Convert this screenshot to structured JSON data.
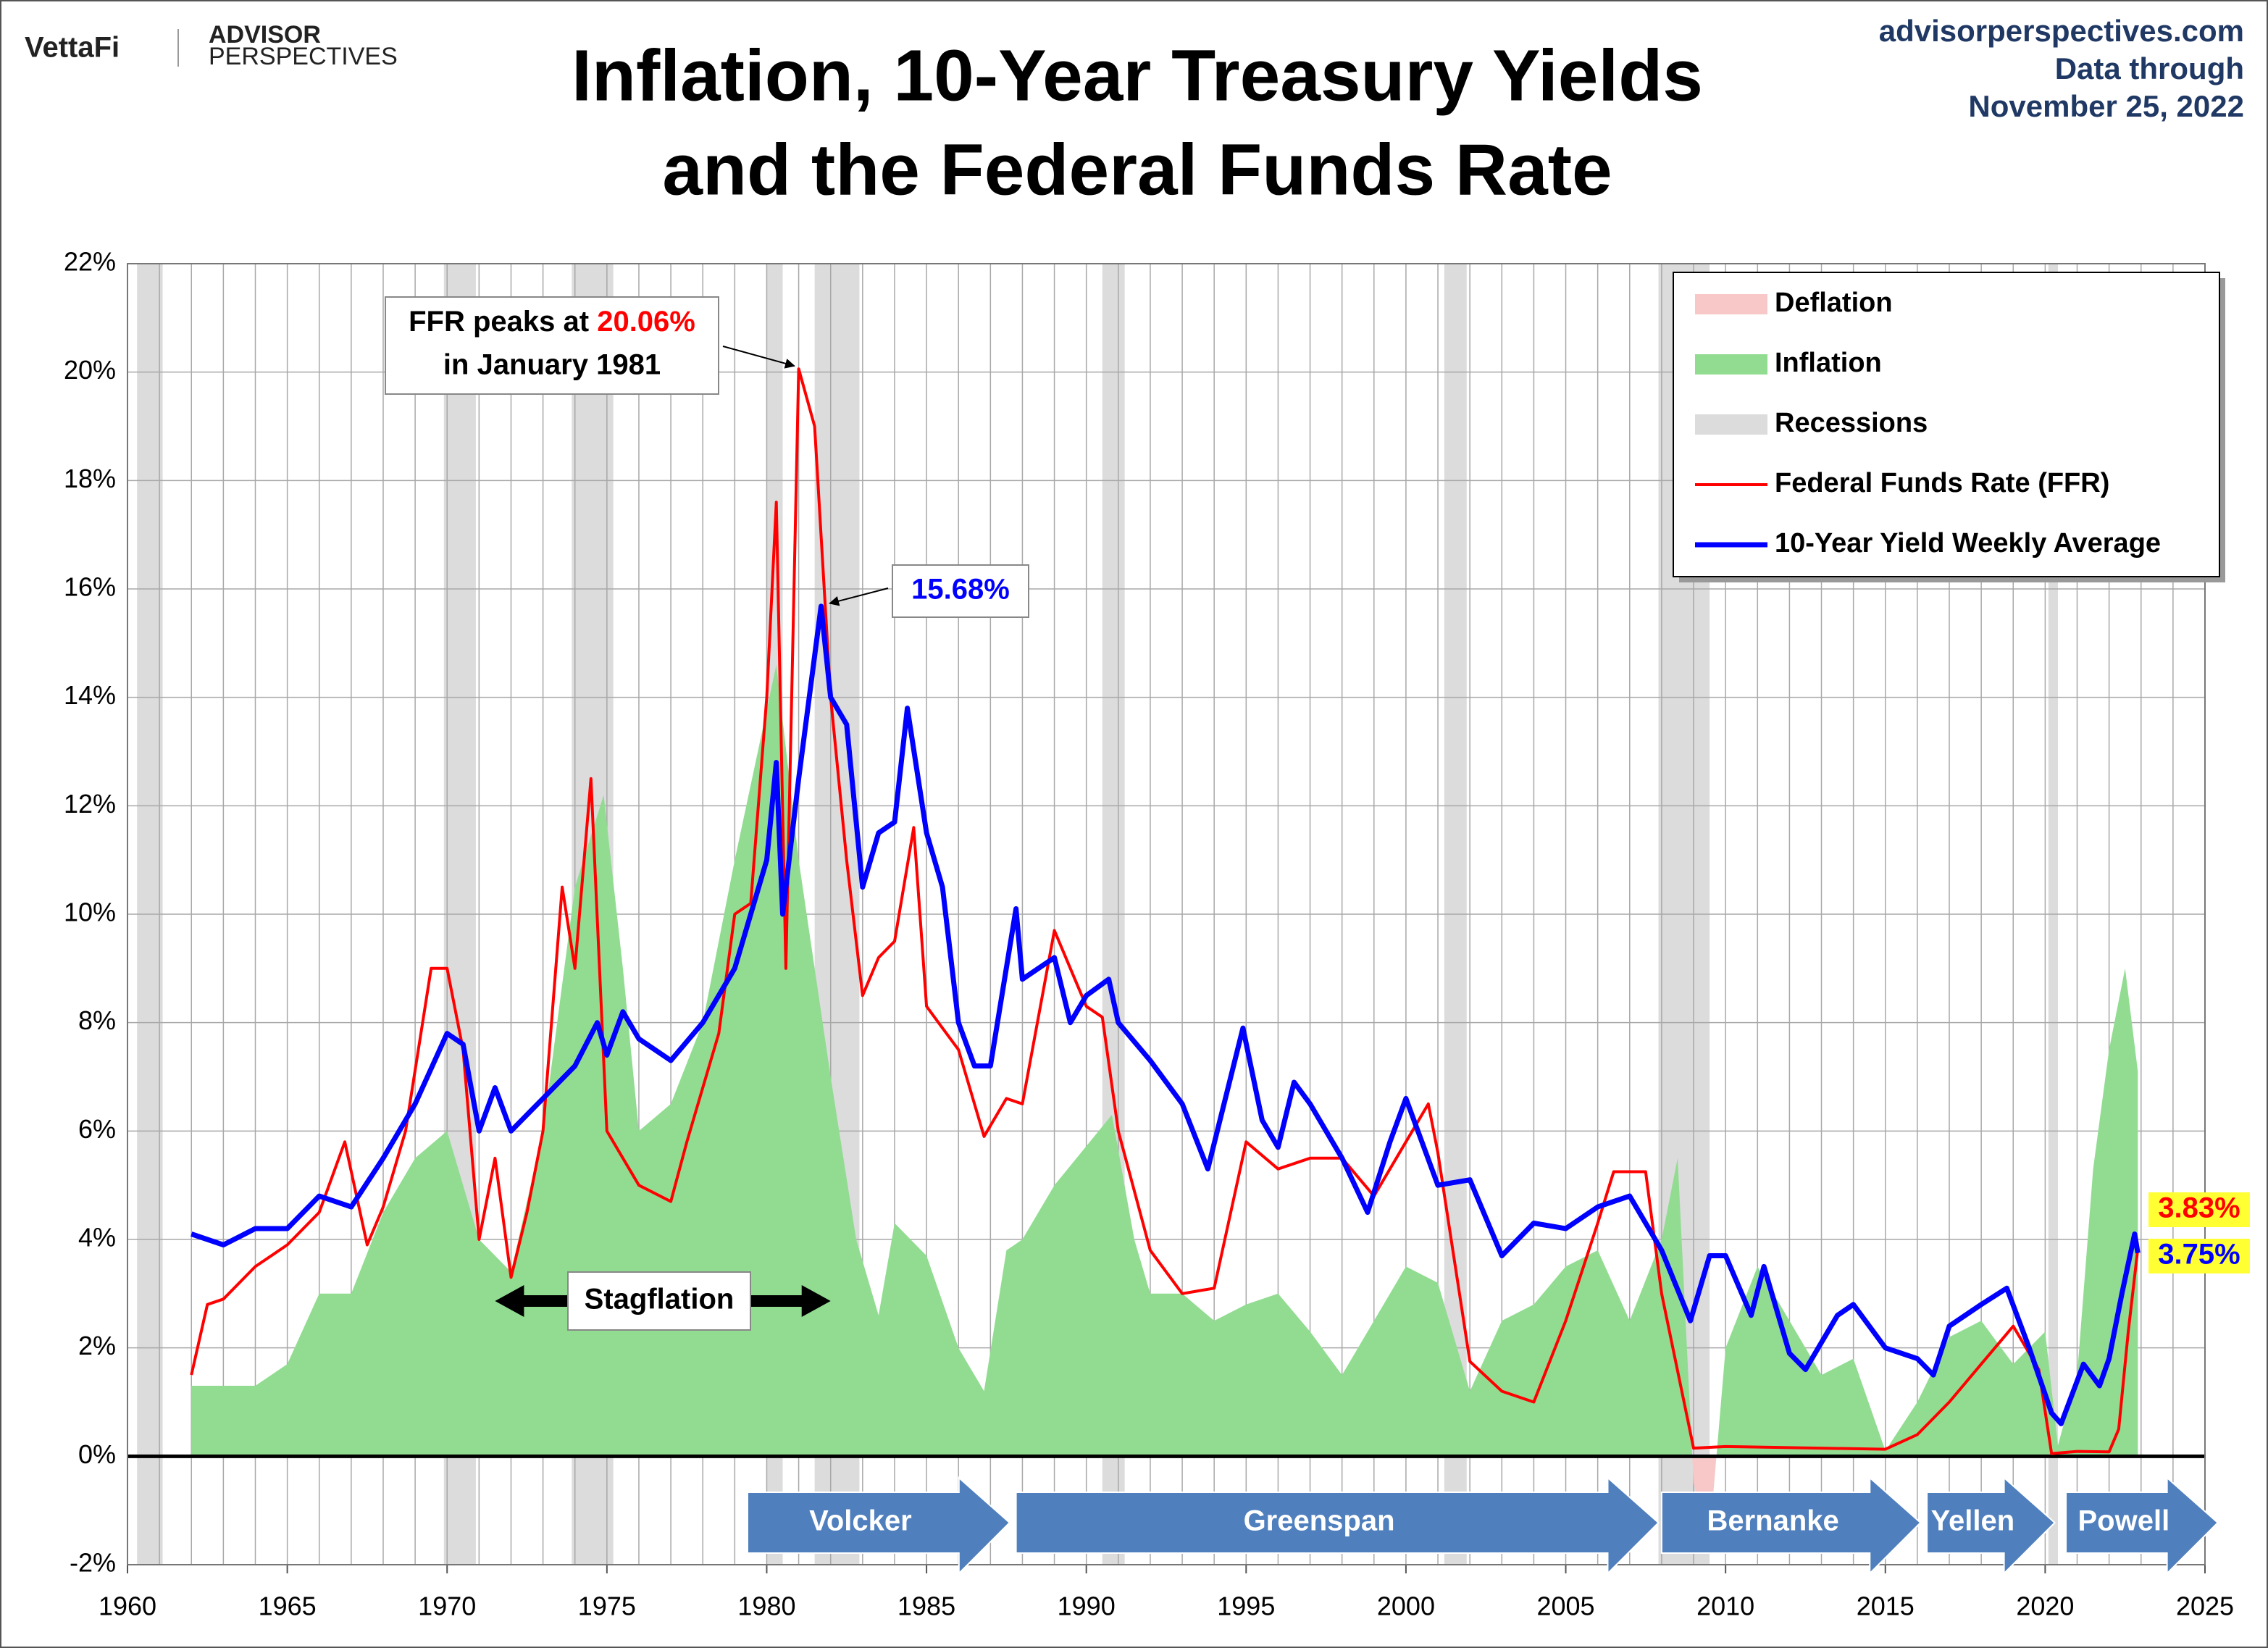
{
  "header": {
    "brand": "VettaFi",
    "brand2": "ADVISOR",
    "brand3": "PERSPECTIVES",
    "site": "advisorperspectives.com",
    "note1": "Data through",
    "note2": "November 25, 2022"
  },
  "chart_data": {
    "type": "line",
    "title": [
      "Inflation, 10-Year Treasury Yields",
      "and the Federal Funds Rate"
    ],
    "xlim": [
      1960,
      2025
    ],
    "xticks": [
      1960,
      1965,
      1970,
      1975,
      1980,
      1985,
      1990,
      1995,
      2000,
      2005,
      2010,
      2015,
      2020,
      2025
    ],
    "minor_grid_step": 1,
    "ylim": [
      -2,
      22
    ],
    "yticks": [
      {
        "value": -2,
        "label": "-2%"
      },
      {
        "value": 0,
        "label": "0%"
      },
      {
        "value": 2,
        "label": "2%"
      },
      {
        "value": 4,
        "label": "4%"
      },
      {
        "value": 6,
        "label": "6%"
      },
      {
        "value": 8,
        "label": "8%"
      },
      {
        "value": 10,
        "label": "10%"
      },
      {
        "value": 12,
        "label": "12%"
      },
      {
        "value": 14,
        "label": "14%"
      },
      {
        "value": 16,
        "label": "16%"
      },
      {
        "value": 18,
        "label": "18%"
      },
      {
        "value": 20,
        "label": "20%"
      },
      {
        "value": 22,
        "label": "22%"
      }
    ],
    "grid": true,
    "legend": "upper right",
    "deflation": {
      "name": "Deflation",
      "color": "#f8c8c8"
    },
    "recessions": {
      "name": "Recessions",
      "color": "#dcdcdc",
      "spans": [
        [
          1960.3,
          1961.1
        ],
        [
          1969.9,
          1970.9
        ],
        [
          1973.9,
          1975.2
        ],
        [
          1980.0,
          1980.5
        ],
        [
          1981.5,
          1982.9
        ],
        [
          1990.5,
          1991.2
        ],
        [
          2001.2,
          2001.9
        ],
        [
          2007.9,
          2009.5
        ],
        [
          2020.1,
          2020.4
        ]
      ]
    },
    "series": [
      {
        "name": "Inflation",
        "kind": "area",
        "color": "#92dc92",
        "x": [
          1962,
          1963,
          1964,
          1965,
          1966,
          1967,
          1968,
          1969,
          1970,
          1971,
          1972,
          1973,
          1974,
          1974.9,
          1975.5,
          1976,
          1977,
          1978,
          1979,
          1980.3,
          1981,
          1982,
          1982.8,
          1983.5,
          1984,
          1985,
          1986,
          1986.8,
          1987.5,
          1988,
          1989,
          1990.8,
          1991.5,
          1992,
          1993,
          1994,
          1995,
          1996,
          1997,
          1998,
          1999,
          2000,
          2001,
          2002,
          2003,
          2004,
          2005,
          2006,
          2007,
          2008,
          2008.5,
          2009,
          2009.5,
          2010,
          2011,
          2012,
          2013,
          2014,
          2015,
          2016,
          2017,
          2018,
          2019,
          2020,
          2020.4,
          2021,
          2021.5,
          2022,
          2022.5,
          2022.9
        ],
        "values": [
          1.3,
          1.3,
          1.3,
          1.7,
          3.0,
          3.0,
          4.5,
          5.5,
          6.0,
          4.0,
          3.4,
          6,
          10.5,
          12.2,
          9,
          6,
          6.5,
          8,
          11,
          14.6,
          11,
          7,
          4,
          2.6,
          4.3,
          3.7,
          2.0,
          1.2,
          3.8,
          4.0,
          5,
          6.3,
          4.0,
          3,
          3,
          2.5,
          2.8,
          3,
          2.3,
          1.5,
          2.5,
          3.5,
          3.2,
          1.2,
          2.5,
          2.8,
          3.5,
          3.8,
          2.5,
          4,
          5.5,
          -0.5,
          -1.5,
          2,
          3.5,
          2.5,
          1.5,
          1.8,
          0.1,
          1.0,
          2.2,
          2.5,
          1.7,
          2.3,
          0.2,
          1.5,
          5.3,
          7.5,
          9.0,
          7.1
        ]
      },
      {
        "name": "Federal Funds Rate (FFR)",
        "kind": "line",
        "color": "#ff0000",
        "width": 4,
        "x": [
          1962,
          1962.5,
          1963,
          1964,
          1965,
          1966,
          1966.8,
          1967.5,
          1968,
          1968.7,
          1969.5,
          1970,
          1970.5,
          1971,
          1971.5,
          1972,
          1972.5,
          1973,
          1973.6,
          1974,
          1974.5,
          1975,
          1975.5,
          1976,
          1977,
          1977.5,
          1978,
          1978.5,
          1979,
          1979.5,
          1980,
          1980.3,
          1980.6,
          1981,
          1981.5,
          1982,
          1982.5,
          1983,
          1983.5,
          1984,
          1984.6,
          1985,
          1985.5,
          1986,
          1986.8,
          1987.5,
          1988,
          1989,
          1989.5,
          1990,
          1990.5,
          1991,
          1992,
          1993,
          1994,
          1995,
          1996,
          1997,
          1998,
          1999,
          2000,
          2000.7,
          2001,
          2002,
          2003,
          2004,
          2005,
          2006,
          2006.5,
          2007.5,
          2008,
          2009,
          2010,
          2015,
          2016,
          2017,
          2018,
          2019,
          2019.8,
          2020.2,
          2021,
          2022,
          2022.3,
          2022.6,
          2022.9
        ],
        "values": [
          1.5,
          2.8,
          2.9,
          3.5,
          3.9,
          4.5,
          5.8,
          3.9,
          4.6,
          6.0,
          9.0,
          9.0,
          7.5,
          4.0,
          5.5,
          3.3,
          4.5,
          6,
          10.5,
          9,
          12.5,
          6,
          5.5,
          5,
          4.7,
          5.8,
          6.8,
          7.8,
          10,
          10.2,
          14,
          17.6,
          9,
          20.06,
          19,
          14,
          11,
          8.5,
          9.2,
          9.5,
          11.6,
          8.3,
          7.9,
          7.5,
          5.9,
          6.6,
          6.5,
          9.7,
          9.0,
          8.3,
          8.1,
          6,
          3.8,
          3,
          3.1,
          5.8,
          5.3,
          5.5,
          5.5,
          4.8,
          5.8,
          6.5,
          5.6,
          1.75,
          1.2,
          1.0,
          2.5,
          4.3,
          5.25,
          5.25,
          3.0,
          0.15,
          0.18,
          0.13,
          0.4,
          1.0,
          1.7,
          2.4,
          1.6,
          0.05,
          0.09,
          0.08,
          0.5,
          2.3,
          3.83
        ],
        "end_label": "3.83%"
      },
      {
        "name": "10-Year Yield Weekly Average",
        "kind": "line",
        "color": "#0000ff",
        "width": 7,
        "x": [
          1962,
          1963,
          1964,
          1965,
          1966,
          1967,
          1968,
          1969,
          1970,
          1970.5,
          1971,
          1971.5,
          1972,
          1973,
          1974,
          1974.7,
          1975,
          1975.5,
          1976,
          1977,
          1978,
          1979,
          1980,
          1980.3,
          1980.5,
          1981,
          1981.7,
          1982,
          1982.5,
          1983,
          1983.5,
          1984,
          1984.4,
          1985,
          1985.5,
          1986,
          1986.5,
          1987,
          1987.8,
          1988,
          1989,
          1989.5,
          1990,
          1990.7,
          1991,
          1992,
          1993,
          1993.8,
          1994.9,
          1995.5,
          1996,
          1996.5,
          1997,
          1998,
          1998.8,
          1999.5,
          2000,
          2001,
          2002,
          2003,
          2004,
          2005,
          2006,
          2007,
          2008,
          2008.9,
          2009.5,
          2010,
          2010.8,
          2011.2,
          2012,
          2012.5,
          2013.5,
          2014,
          2015,
          2016,
          2016.5,
          2017,
          2018,
          2018.8,
          2019.5,
          2020.2,
          2020.5,
          2021.2,
          2021.7,
          2022,
          2022.4,
          2022.8,
          2022.9
        ],
        "values": [
          4.1,
          3.9,
          4.2,
          4.2,
          4.8,
          4.6,
          5.5,
          6.5,
          7.8,
          7.6,
          6.0,
          6.8,
          6.0,
          6.6,
          7.2,
          8.0,
          7.4,
          8.2,
          7.7,
          7.3,
          8.0,
          9.0,
          11,
          12.8,
          10,
          12.5,
          15.68,
          14,
          13.5,
          10.5,
          11.5,
          11.7,
          13.8,
          11.5,
          10.5,
          8.0,
          7.2,
          7.2,
          10.1,
          8.8,
          9.2,
          8.0,
          8.5,
          8.8,
          8.0,
          7.3,
          6.5,
          5.3,
          7.9,
          6.2,
          5.7,
          6.9,
          6.5,
          5.5,
          4.5,
          5.8,
          6.6,
          5.0,
          5.1,
          3.7,
          4.3,
          4.2,
          4.6,
          4.8,
          3.8,
          2.5,
          3.7,
          3.7,
          2.6,
          3.5,
          1.9,
          1.6,
          2.6,
          2.8,
          2.0,
          1.8,
          1.5,
          2.4,
          2.8,
          3.1,
          2.0,
          0.8,
          0.6,
          1.7,
          1.3,
          1.8,
          3.0,
          4.1,
          3.75
        ],
        "end_label": "3.75%"
      }
    ],
    "annotations": {
      "ffr_peak": {
        "prefix": "FFR peaks at ",
        "value": 20.06,
        "label": "20.06%",
        "suffix": "in January 1981",
        "x": 1981.0
      },
      "yield_peak": {
        "value": 15.68,
        "label": "15.68%",
        "x": 1981.7
      },
      "stagflation": {
        "label": "Stagflation",
        "span": [
          1971.5,
          1982.0
        ]
      }
    },
    "chairs": [
      {
        "name": "Volcker",
        "start": 1979.4,
        "end": 1987.6
      },
      {
        "name": "Greenspan",
        "start": 1987.8,
        "end": 2007.9
      },
      {
        "name": "Bernanke",
        "start": 2008.0,
        "end": 2016.1
      },
      {
        "name": "Yellen",
        "start": 2016.3,
        "end": 2020.3
      },
      {
        "name": "Powell",
        "start": 2020.65,
        "end": 2025.4
      }
    ]
  }
}
